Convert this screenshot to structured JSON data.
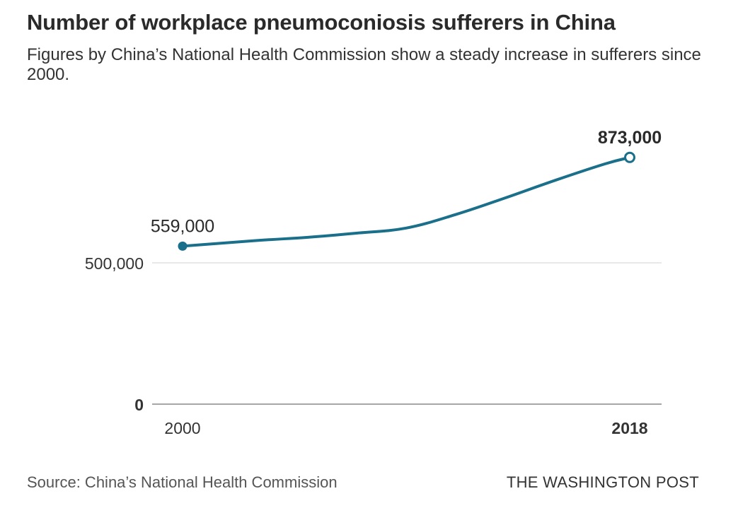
{
  "title": "Number of workplace pneumoconiosis sufferers in China",
  "subtitle": "Figures by China’s National Health Commission show a steady increase in sufferers since 2000.",
  "source": "Source: China’s National Health Commission",
  "credit": "THE WASHINGTON POST",
  "colors": {
    "line": "#1a6f8b",
    "grid": "#d9d9d9",
    "axis": "#888888"
  },
  "chart_data": {
    "type": "line",
    "title": "Number of workplace pneumoconiosis sufferers in China",
    "xlabel": "",
    "ylabel": "",
    "xlim": [
      2000,
      2018
    ],
    "ylim": [
      0,
      900000
    ],
    "y_ticks": [
      {
        "value": 0,
        "label": "0",
        "bold": true
      },
      {
        "value": 500000,
        "label": "500,000",
        "bold": false
      }
    ],
    "x_ticks": [
      {
        "value": 2000,
        "label": "2000",
        "bold": false
      },
      {
        "value": 2018,
        "label": "2018",
        "bold": true
      }
    ],
    "grid": true,
    "series": [
      {
        "x": [
          2000,
          2003,
          2005,
          2007,
          2009,
          2011,
          2013,
          2015,
          2017,
          2018
        ],
        "y": [
          559000,
          579000,
          590000,
          605000,
          623000,
          671000,
          730000,
          792000,
          850000,
          873000
        ]
      }
    ],
    "annotations": [
      {
        "x": 2000,
        "y": 559000,
        "label": "559,000",
        "bold": false,
        "marker": "filled"
      },
      {
        "x": 2018,
        "y": 873000,
        "label": "873,000",
        "bold": true,
        "marker": "open"
      }
    ]
  }
}
